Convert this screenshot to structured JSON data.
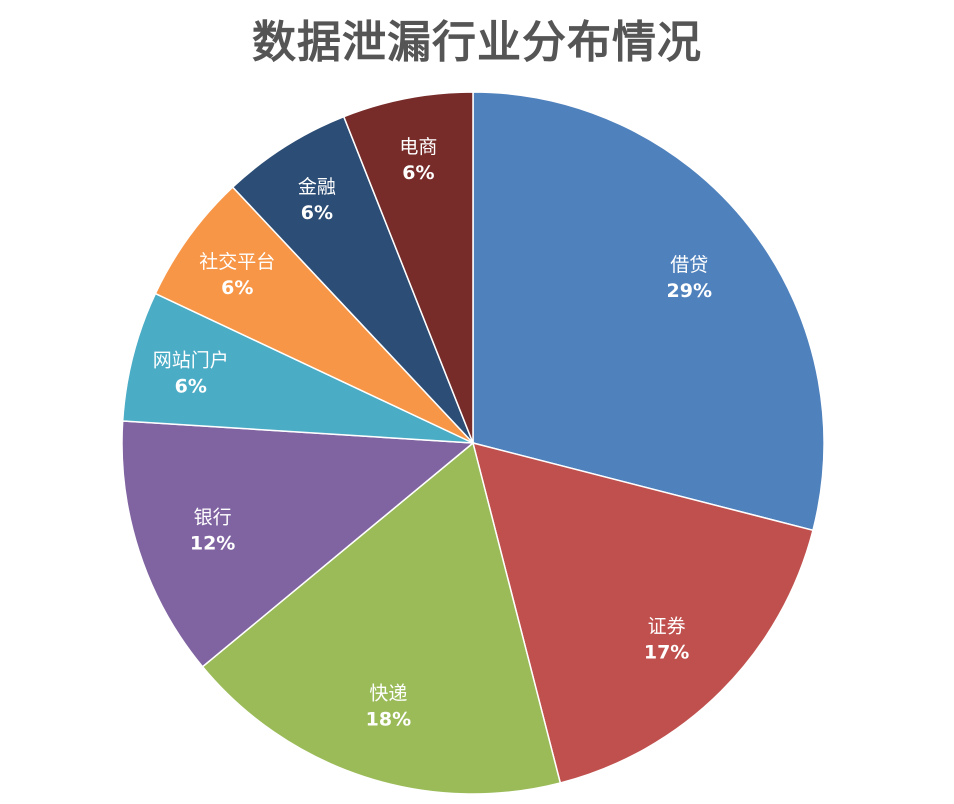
{
  "chart_data": {
    "type": "pie",
    "title": "数据泄漏行业分布情况",
    "slices": [
      {
        "label": "借贷",
        "value": 29,
        "value_label": "29%",
        "color": "#4F81BD"
      },
      {
        "label": "证券",
        "value": 17,
        "value_label": "17%",
        "color": "#C0504D"
      },
      {
        "label": "快递",
        "value": 18,
        "value_label": "18%",
        "color": "#9BBB59"
      },
      {
        "label": "银行",
        "value": 12,
        "value_label": "12%",
        "color": "#8064A2"
      },
      {
        "label": "网站门户",
        "value": 6,
        "value_label": "6%",
        "color": "#4BACC6"
      },
      {
        "label": "社交平台",
        "value": 6,
        "value_label": "6%",
        "color": "#F79646"
      },
      {
        "label": "金融",
        "value": 6,
        "value_label": "6%",
        "color": "#2C4D75"
      },
      {
        "label": "电商",
        "value": 6,
        "value_label": "6%",
        "color": "#772C2A"
      }
    ],
    "legend": "none"
  }
}
